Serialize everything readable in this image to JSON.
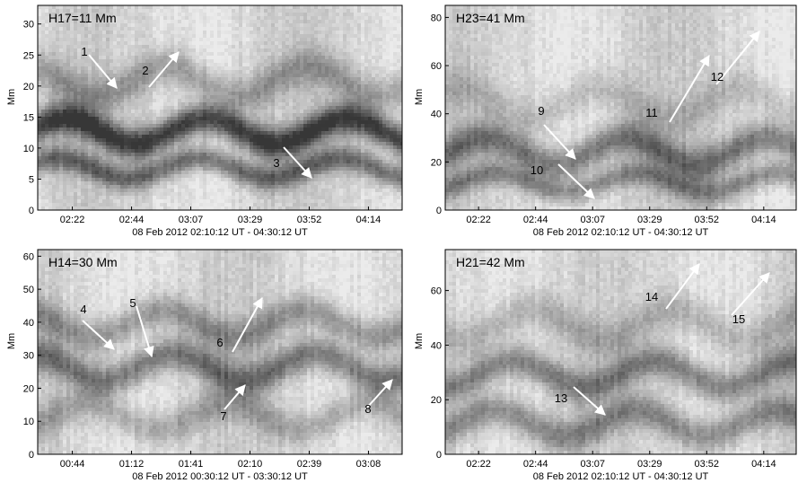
{
  "chart_data": [
    {
      "type": "heatmap",
      "title": "H17=11 Mm",
      "ylabel": "Mm",
      "xlabel": "08 Feb 2012  02:10:12 UT - 04:30:12 UT",
      "ylim": [
        0,
        33
      ],
      "yticks": [
        "0",
        "5",
        "10",
        "15",
        "20",
        "25",
        "30"
      ],
      "xticks": [
        "02:22",
        "02:44",
        "03:07",
        "03:29",
        "03:52",
        "04:14"
      ],
      "features": [
        {
          "band_y": 13,
          "darkness": 0.85,
          "spread": 2.5
        },
        {
          "band_y": 7,
          "darkness": 0.6,
          "spread": 2.0
        },
        {
          "band_y": 21,
          "darkness": 0.35,
          "spread": 3.0
        }
      ],
      "arrows": [
        {
          "label": "1"
        },
        {
          "label": "2"
        },
        {
          "label": "3"
        }
      ]
    },
    {
      "type": "heatmap",
      "title": "H23=41 Mm",
      "ylabel": "Mm",
      "xlabel": "08 Feb 2012  02:10:12 UT - 04:30:12 UT",
      "ylim": [
        0,
        85
      ],
      "yticks": [
        "0",
        "20",
        "40",
        "60",
        "80"
      ],
      "xticks": [
        "02:22",
        "02:44",
        "03:07",
        "03:29",
        "03:52",
        "04:14"
      ],
      "features": [
        {
          "band_y": 25,
          "darkness": 0.55,
          "spread": 7
        },
        {
          "band_y": 12,
          "darkness": 0.45,
          "spread": 5
        },
        {
          "band_y": 45,
          "darkness": 0.2,
          "spread": 8
        }
      ],
      "arrows": [
        {
          "label": "9"
        },
        {
          "label": "10"
        },
        {
          "label": "11"
        },
        {
          "label": "12"
        }
      ]
    },
    {
      "type": "heatmap",
      "title": "H14=30 Mm",
      "ylabel": "Mm",
      "xlabel": "08 Feb 2012  00:30:12 UT - 03:30:12 UT",
      "ylim": [
        0,
        62
      ],
      "yticks": [
        "0",
        "10",
        "20",
        "30",
        "40",
        "50",
        "60"
      ],
      "xticks": [
        "00:44",
        "01:12",
        "01:41",
        "02:10",
        "02:39",
        "03:08"
      ],
      "features": [
        {
          "band_y": 27,
          "darkness": 0.55,
          "spread": 5
        },
        {
          "band_y": 40,
          "darkness": 0.4,
          "spread": 5
        },
        {
          "band_y": 12,
          "darkness": 0.3,
          "spread": 5
        }
      ],
      "arrows": [
        {
          "label": "4"
        },
        {
          "label": "5"
        },
        {
          "label": "6"
        },
        {
          "label": "7"
        },
        {
          "label": "8"
        }
      ]
    },
    {
      "type": "heatmap",
      "title": "H21=42 Mm",
      "ylabel": "Mm",
      "xlabel": "08 Feb 2012  02:10:12 UT - 04:30:12 UT",
      "ylim": [
        0,
        75
      ],
      "yticks": [
        "0",
        "20",
        "40",
        "60"
      ],
      "xticks": [
        "02:22",
        "02:44",
        "03:07",
        "03:29",
        "03:52",
        "04:14"
      ],
      "features": [
        {
          "band_y": 30,
          "darkness": 0.5,
          "spread": 6
        },
        {
          "band_y": 12,
          "darkness": 0.45,
          "spread": 6
        },
        {
          "band_y": 48,
          "darkness": 0.25,
          "spread": 7
        }
      ],
      "arrows": [
        {
          "label": "13"
        },
        {
          "label": "14"
        },
        {
          "label": "15"
        }
      ]
    }
  ]
}
